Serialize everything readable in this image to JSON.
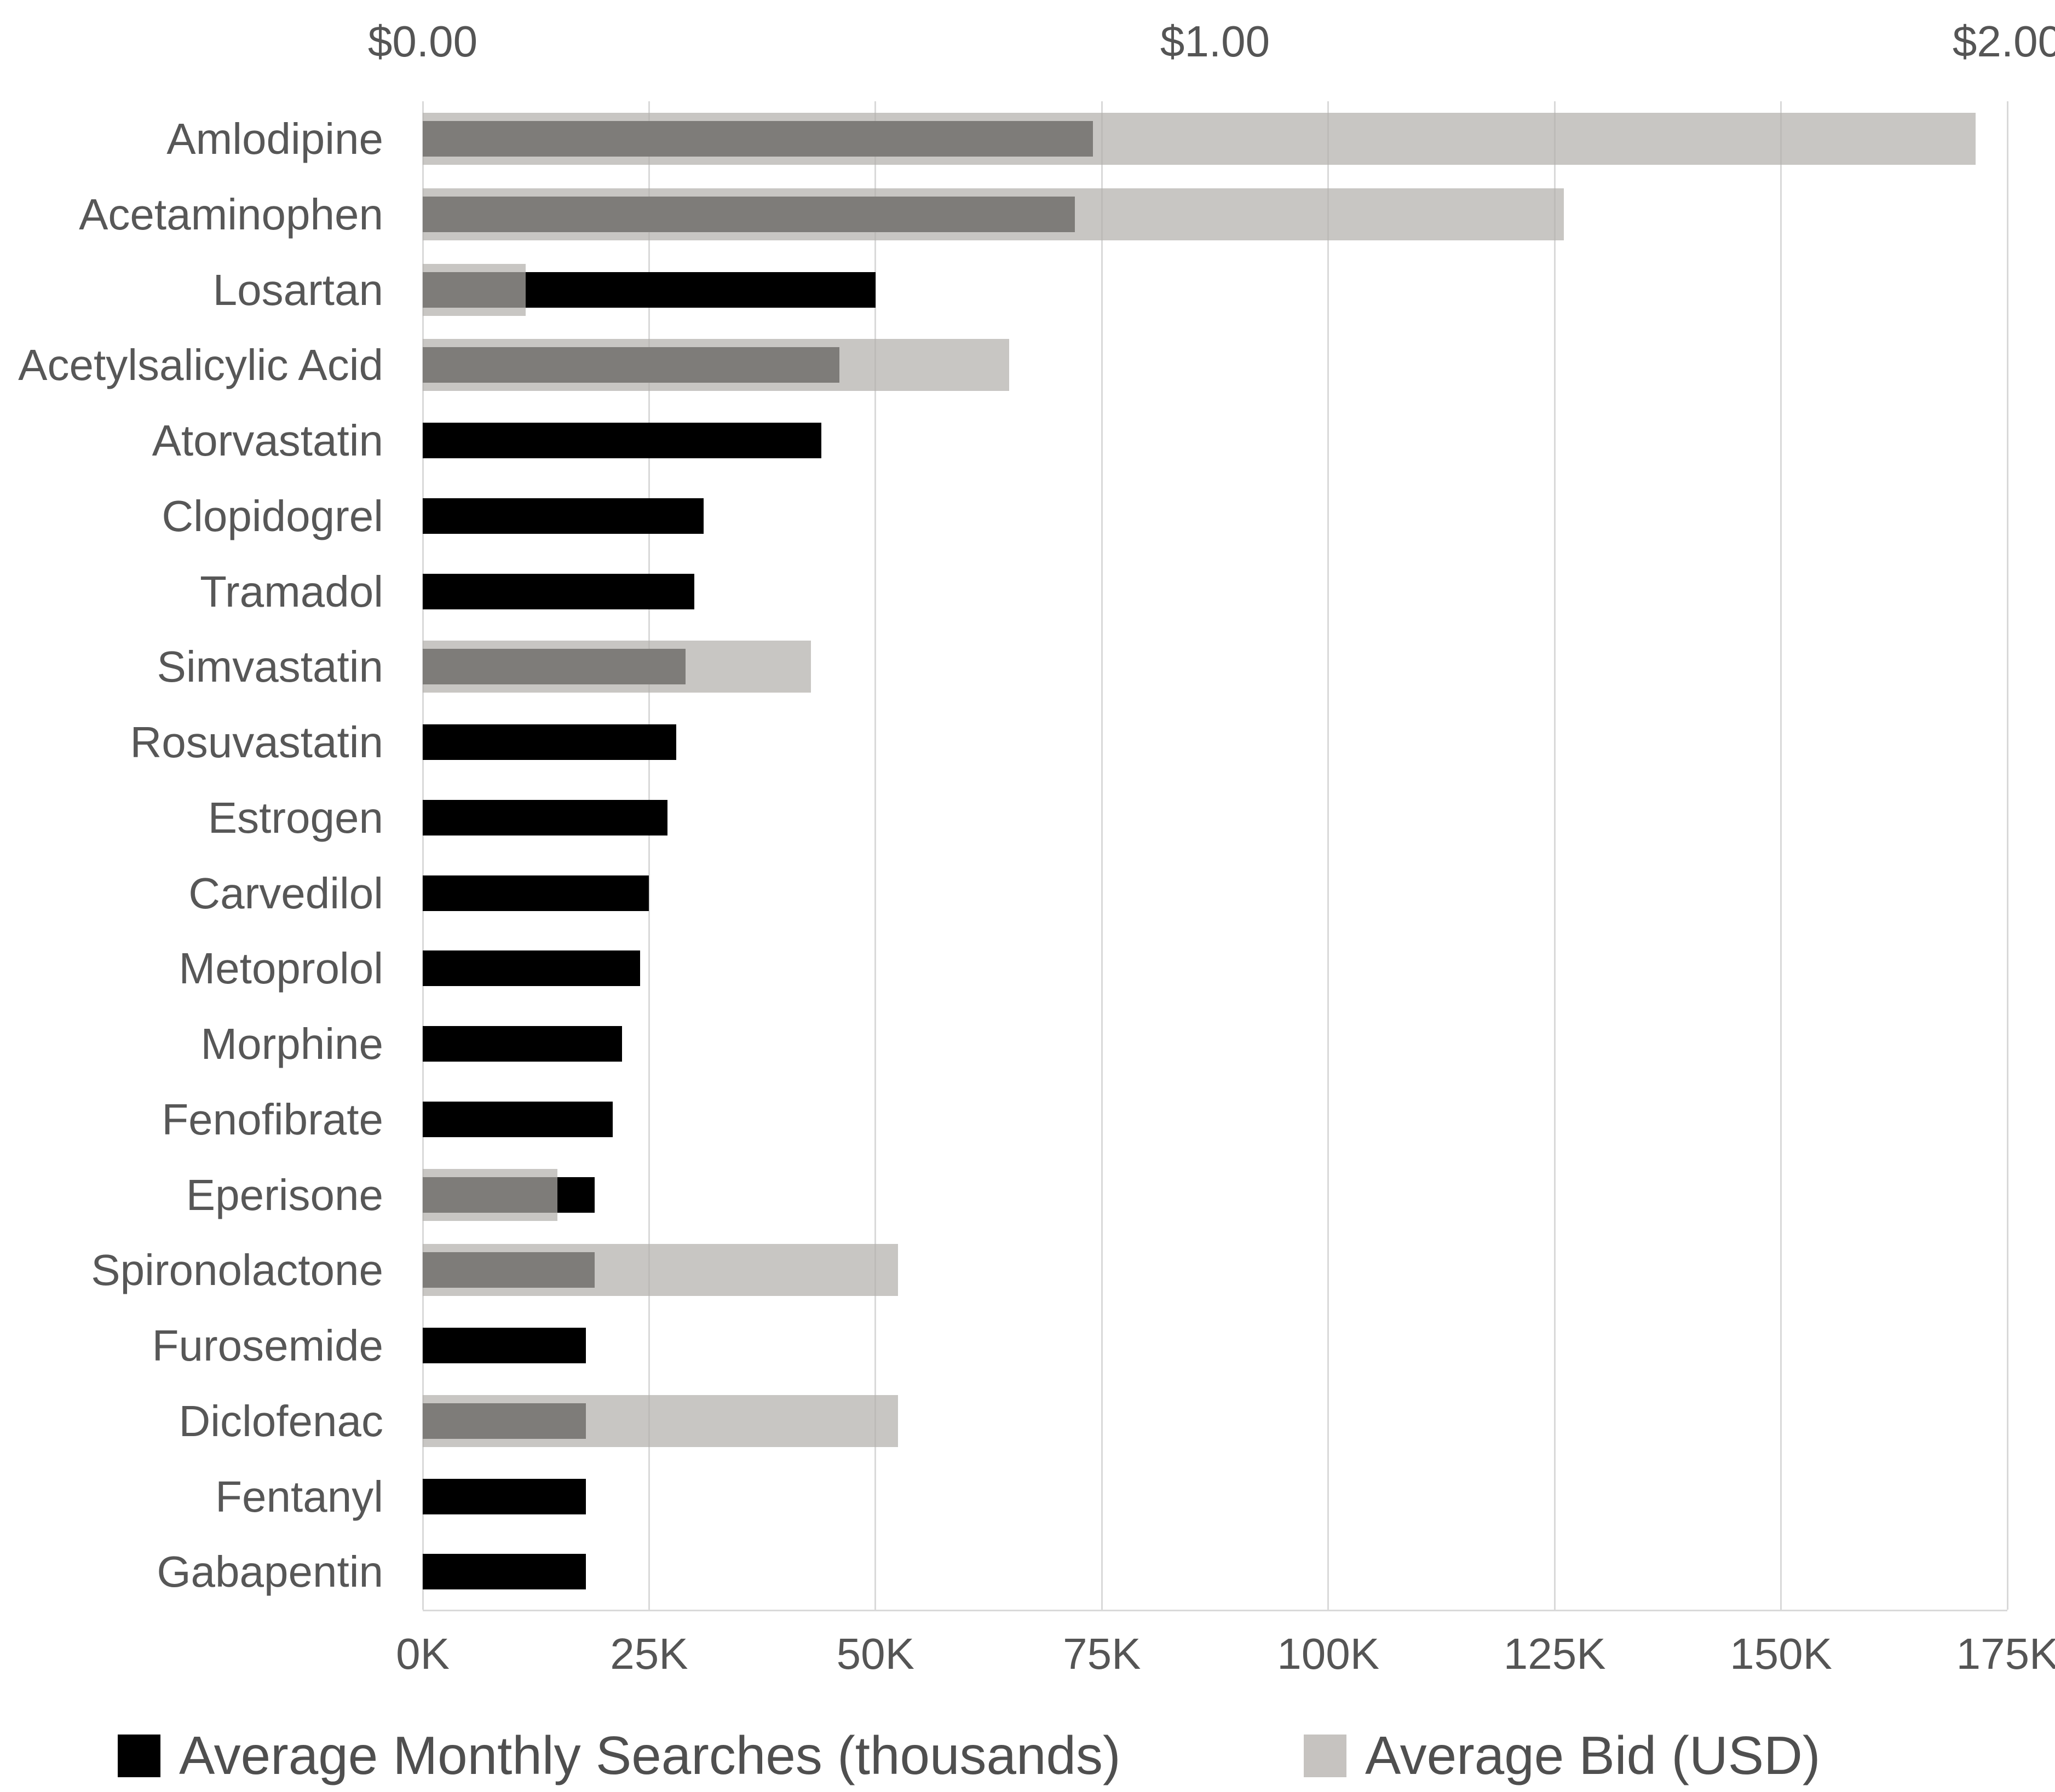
{
  "chart_data": {
    "type": "bar",
    "orientation": "horizontal",
    "title": "",
    "categories": [
      "Amlodipine",
      "Acetaminophen",
      "Losartan",
      "Acetylsalicylic Acid",
      "Atorvastatin",
      "Clopidogrel",
      "Tramadol",
      "Simvastatin",
      "Rosuvastatin",
      "Estrogen",
      "Carvedilol",
      "Metoprolol",
      "Morphine",
      "Fenofibrate",
      "Eperisone",
      "Spironolactone",
      "Furosemide",
      "Diclofenac",
      "Fentanyl",
      "Gabapentin"
    ],
    "series": [
      {
        "name": "Average Monthly Searches (thousands)",
        "axis": "bottom",
        "color": "#000000",
        "values": [
          74,
          72,
          50,
          46,
          44,
          31,
          30,
          29,
          28,
          27,
          25,
          24,
          22,
          21,
          19,
          19,
          18,
          18,
          18,
          18
        ]
      },
      {
        "name": "Average Bid (USD)",
        "axis": "top",
        "color": "rgba(177,174,171,0.71)",
        "values": [
          1.96,
          1.44,
          0.13,
          0.74,
          null,
          null,
          null,
          0.49,
          null,
          null,
          null,
          null,
          null,
          null,
          0.17,
          0.6,
          null,
          0.6,
          null,
          null
        ]
      }
    ],
    "axes": {
      "top": {
        "min": 0,
        "max": 2,
        "ticks": [
          "$0.00",
          "$1.00",
          "$2.00"
        ],
        "label": ""
      },
      "bottom": {
        "min": 0,
        "max": 175,
        "ticks": [
          "0K",
          "25K",
          "50K",
          "75K",
          "100K",
          "125K",
          "150K",
          "175K"
        ],
        "label": ""
      }
    },
    "grid": true,
    "legend": {
      "position": "bottom",
      "entries": [
        {
          "label": "Average Monthly Searches (thousands)",
          "swatch": "#000000"
        },
        {
          "label": "Average Bid (USD)",
          "swatch": "#c6c3c0"
        }
      ]
    }
  },
  "styles": {
    "gridline_color": "#d9d9d9",
    "label_color": "#575757",
    "tick_color": "#555555",
    "legend_text_color": "#4f4f4f",
    "background": "#ffffff"
  }
}
